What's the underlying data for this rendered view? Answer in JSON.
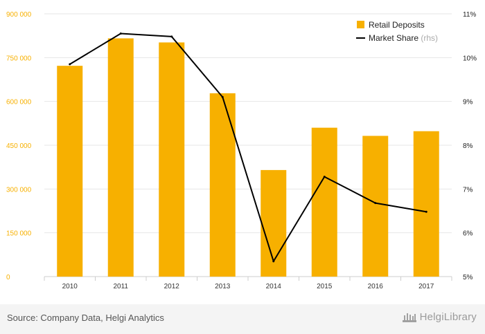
{
  "chart_data": {
    "type": "bar",
    "categories": [
      "2010",
      "2011",
      "2012",
      "2013",
      "2014",
      "2015",
      "2016",
      "2017"
    ],
    "series": [
      {
        "name": "Retail Deposits",
        "type": "bar",
        "axis": "left",
        "color": "#f7b000",
        "values": [
          722000,
          816000,
          802000,
          628000,
          365000,
          510000,
          482000,
          498000
        ]
      },
      {
        "name": "Market Share",
        "name_suffix": "(rhs)",
        "type": "line",
        "axis": "right",
        "color": "#000000",
        "values": [
          9.85,
          10.55,
          10.48,
          9.1,
          5.35,
          7.28,
          6.68,
          6.48
        ]
      }
    ],
    "y_left": {
      "ylim": [
        0,
        900000
      ],
      "ticks": [
        0,
        150000,
        300000,
        450000,
        600000,
        750000,
        900000
      ],
      "tick_labels": [
        "0",
        "150 000",
        "300 000",
        "450 000",
        "600 000",
        "750 000",
        "900 000"
      ],
      "label_color": "#f7b000"
    },
    "y_right": {
      "ylim": [
        5,
        11
      ],
      "ticks": [
        5,
        6,
        7,
        8,
        9,
        10,
        11
      ],
      "tick_labels": [
        "5%",
        "6%",
        "7%",
        "8%",
        "9%",
        "10%",
        "11%"
      ]
    },
    "grid": true,
    "legend_position": "top-right"
  },
  "footer": {
    "source": "Source: Company Data, Helgi Analytics",
    "brand": "HelgiLibrary"
  }
}
